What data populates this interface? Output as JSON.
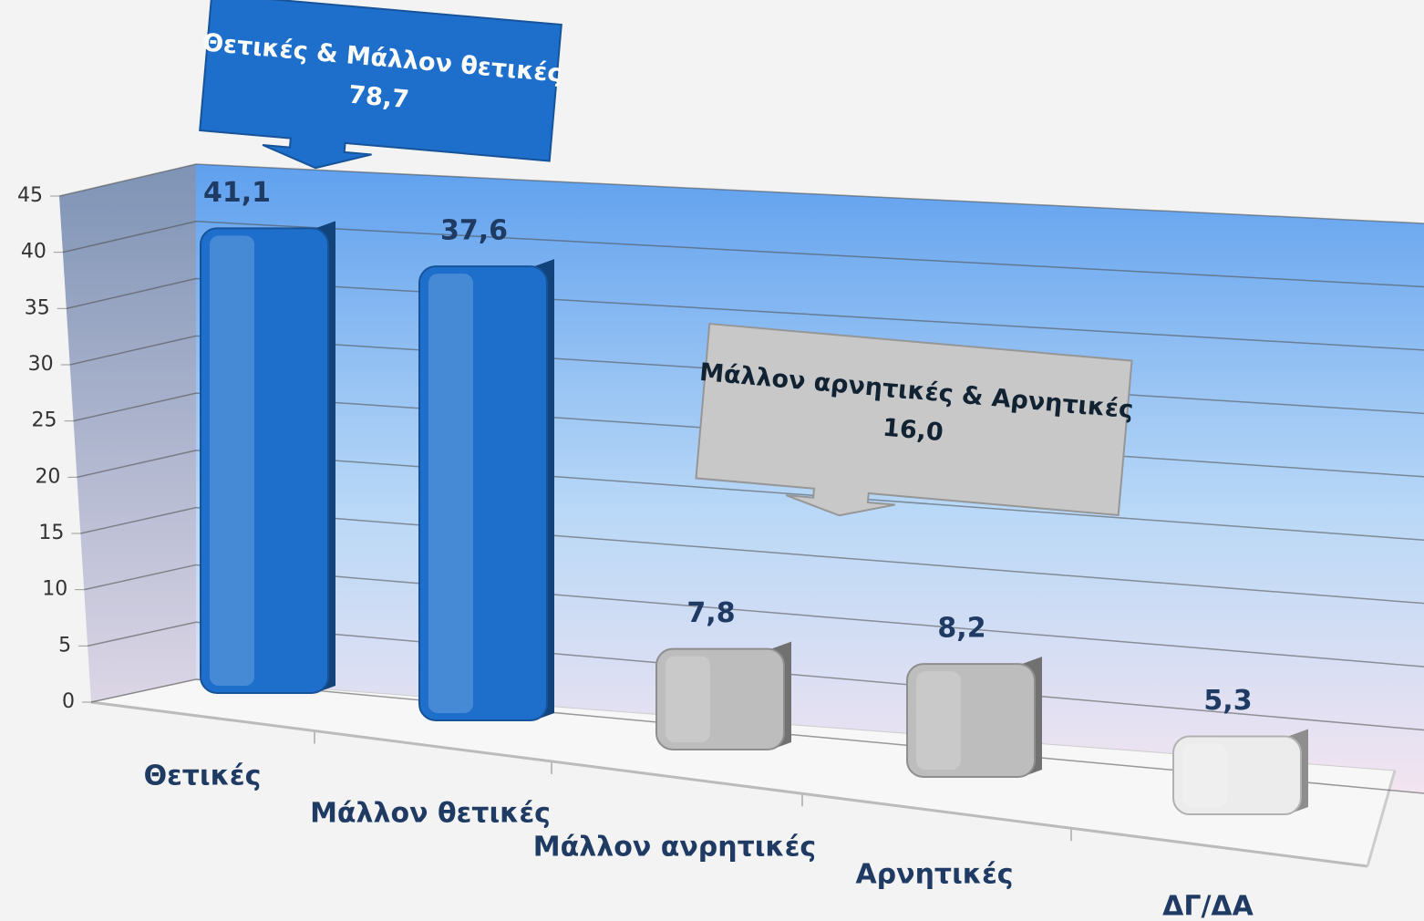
{
  "chart_data": {
    "type": "bar",
    "categories": [
      "Θετικές",
      "Μάλλον θετικές",
      "Μάλλον ανρητικές",
      "Αρνητικές",
      "ΔΓ/ΔΑ"
    ],
    "values": [
      41.1,
      37.6,
      7.8,
      8.2,
      5.3
    ],
    "value_labels": [
      "41,1",
      "37,6",
      "7,8",
      "8,2",
      "5,3"
    ],
    "colors": [
      "#1e6fcc",
      "#1e6fcc",
      "#bdbdbd",
      "#bdbdbd",
      "#ececec"
    ],
    "ylim": [
      0,
      45
    ],
    "yticks": [
      0,
      5,
      10,
      15,
      20,
      25,
      30,
      35,
      40,
      45
    ],
    "grid": true,
    "annotations": [
      {
        "text": "Θετικές  & Μάλλον θετικές",
        "value": 78.7,
        "label": "78,7",
        "color": "#1e6fcc"
      },
      {
        "text": "Μάλλον αρνητικές & Αρνητικές",
        "value": 16.0,
        "label": "16,0",
        "color": "#c8c8c8"
      }
    ]
  }
}
